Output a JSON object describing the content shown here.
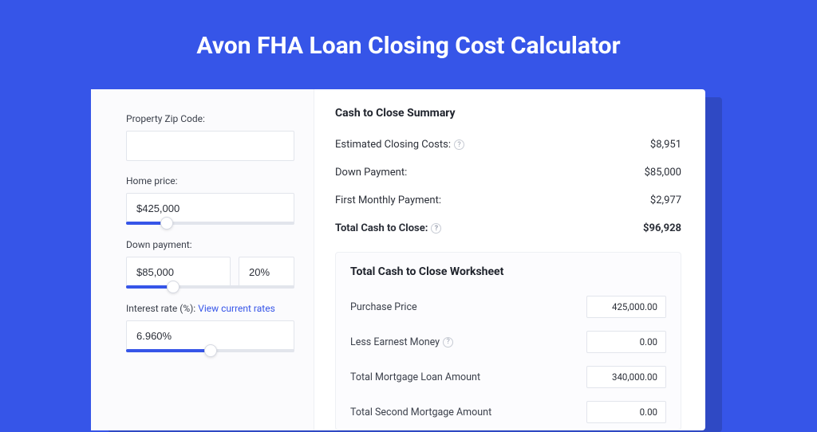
{
  "colors": {
    "page_bg": "#3655e8",
    "shadow_bg": "#2f49c4",
    "card_bg": "#ffffff",
    "left_bg": "#fbfbfd",
    "border": "#e2e5ec",
    "text": "#2b2f38",
    "muted": "#3a3f4a",
    "link": "#3655e8"
  },
  "page_title": "Avon FHA Loan Closing Cost Calculator",
  "form": {
    "zip_label": "Property Zip Code:",
    "zip_value": "",
    "home_price_label": "Home price:",
    "home_price_value": "$425,000",
    "home_price_slider_pct": 24,
    "down_payment_label": "Down payment:",
    "down_payment_value": "$85,000",
    "down_payment_pct": "20%",
    "down_payment_slider_pct": 28,
    "interest_label": "Interest rate (%):",
    "interest_link": "View current rates",
    "interest_value": "6.960%",
    "interest_slider_pct": 50
  },
  "summary": {
    "title": "Cash to Close Summary",
    "rows": [
      {
        "label": "Estimated Closing Costs:",
        "help": true,
        "value": "$8,951",
        "bold": false
      },
      {
        "label": "Down Payment:",
        "help": false,
        "value": "$85,000",
        "bold": false
      },
      {
        "label": "First Monthly Payment:",
        "help": false,
        "value": "$2,977",
        "bold": false
      },
      {
        "label": "Total Cash to Close:",
        "help": true,
        "value": "$96,928",
        "bold": true
      }
    ]
  },
  "worksheet": {
    "title": "Total Cash to Close Worksheet",
    "rows": [
      {
        "label": "Purchase Price",
        "help": false,
        "value": "425,000.00"
      },
      {
        "label": "Less Earnest Money",
        "help": true,
        "value": "0.00"
      },
      {
        "label": "Total Mortgage Loan Amount",
        "help": false,
        "value": "340,000.00"
      },
      {
        "label": "Total Second Mortgage Amount",
        "help": false,
        "value": "0.00"
      }
    ]
  }
}
